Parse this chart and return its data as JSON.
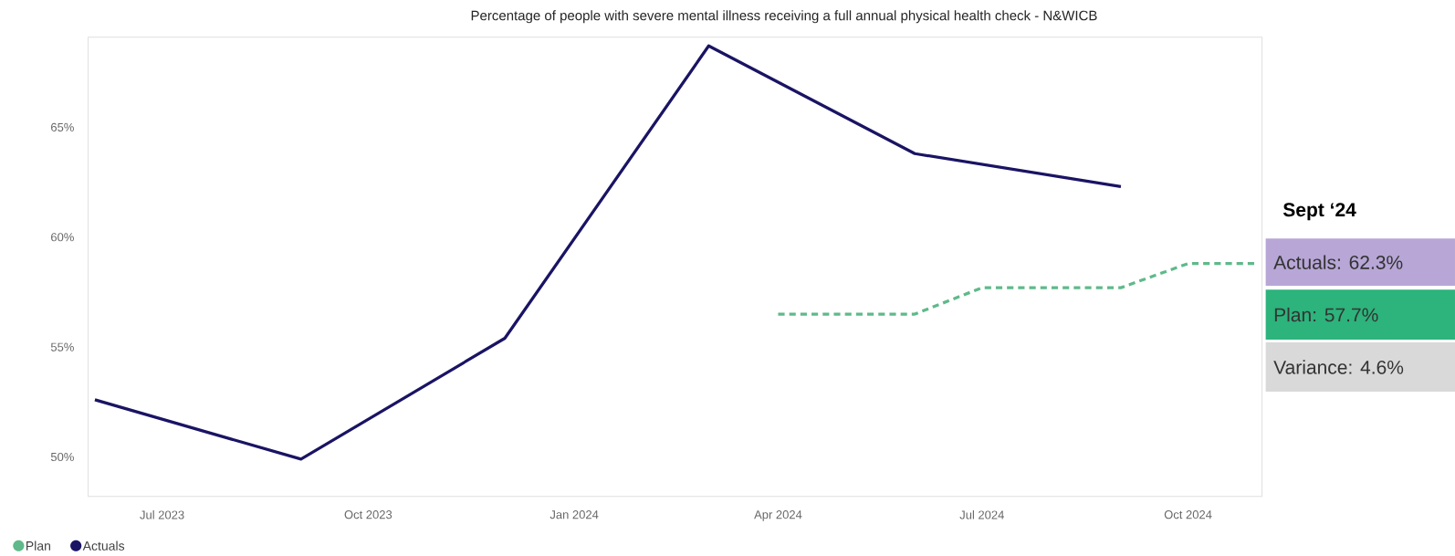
{
  "chart_data": {
    "type": "line",
    "title": "Percentage of people with severe mental illness receiving a full annual physical health check - N&WICB",
    "series": [
      {
        "name": "Plan",
        "color": "#5fb98a",
        "line_style": "dashed",
        "x": [
          "2024-04-01",
          "2024-05-01",
          "2024-06-01",
          "2024-07-01",
          "2024-08-01",
          "2024-09-01",
          "2024-10-01",
          "2024-11-01"
        ],
        "values": [
          56.5,
          56.5,
          56.5,
          57.7,
          57.7,
          57.7,
          58.8,
          58.8
        ]
      },
      {
        "name": "Actuals",
        "color": "#1a1464",
        "line_style": "solid",
        "x": [
          "2023-06-01",
          "2023-09-01",
          "2023-12-01",
          "2024-03-01",
          "2024-06-01",
          "2024-09-01"
        ],
        "values": [
          52.6,
          49.9,
          55.4,
          68.7,
          63.8,
          62.3
        ]
      }
    ],
    "xticks": [
      {
        "value": "2023-07-01",
        "label": "Jul 2023"
      },
      {
        "value": "2023-10-01",
        "label": "Oct 2023"
      },
      {
        "value": "2024-01-01",
        "label": "Jan 2024"
      },
      {
        "value": "2024-04-01",
        "label": "Apr 2024"
      },
      {
        "value": "2024-07-01",
        "label": "Jul 2024"
      },
      {
        "value": "2024-10-01",
        "label": "Oct 2024"
      }
    ],
    "yticks": [
      {
        "value": 50,
        "label": "50%"
      },
      {
        "value": 55,
        "label": "55%"
      },
      {
        "value": 60,
        "label": "60%"
      },
      {
        "value": 65,
        "label": "65%"
      }
    ],
    "xlim": [
      "2023-05-29",
      "2024-11-03"
    ],
    "ylim": [
      48.2,
      69.1
    ],
    "grid": false,
    "marker": "none",
    "legend": "bottom left",
    "annotations": [
      "Sept ‘24",
      "Actuals: 62.3%",
      "Plan: 57.7%",
      "Variance: 4.6%"
    ]
  }
}
